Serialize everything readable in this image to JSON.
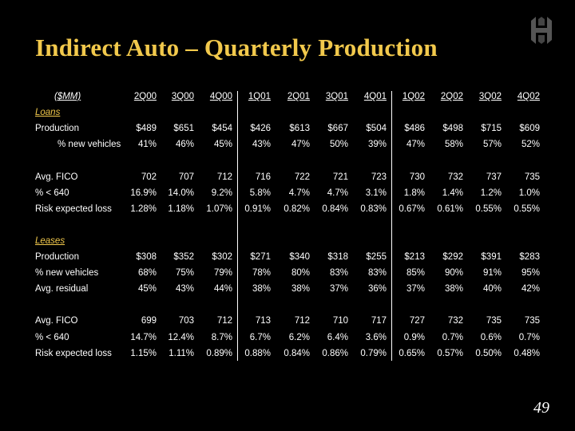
{
  "title": "Indirect Auto – Quarterly Production",
  "page_number": "49",
  "logo_icon": "building-monogram-icon",
  "accent_color": "#f2c94c",
  "table": {
    "header_label": "($MM)",
    "quarters": [
      "2Q00",
      "3Q00",
      "4Q00",
      "1Q01",
      "2Q01",
      "3Q01",
      "4Q01",
      "1Q02",
      "2Q02",
      "3Q02",
      "4Q02"
    ],
    "rows": [
      {
        "type": "section",
        "label": "Loans"
      },
      {
        "type": "data",
        "label": "Production",
        "values": [
          "$489",
          "$651",
          "$454",
          "$426",
          "$613",
          "$667",
          "$504",
          "$486",
          "$498",
          "$715",
          "$609"
        ]
      },
      {
        "type": "data",
        "indent": true,
        "label": "% new vehicles",
        "values": [
          "41%",
          "46%",
          "45%",
          "43%",
          "47%",
          "50%",
          "39%",
          "47%",
          "58%",
          "57%",
          "52%"
        ]
      },
      {
        "type": "blank"
      },
      {
        "type": "data",
        "label": "Avg. FICO",
        "values": [
          "702",
          "707",
          "712",
          "716",
          "722",
          "721",
          "723",
          "730",
          "732",
          "737",
          "735"
        ]
      },
      {
        "type": "data",
        "label": "% < 640",
        "values": [
          "16.9%",
          "14.0%",
          "9.2%",
          "5.8%",
          "4.7%",
          "4.7%",
          "3.1%",
          "1.8%",
          "1.4%",
          "1.2%",
          "1.0%"
        ]
      },
      {
        "type": "data",
        "label": "Risk expected loss",
        "values": [
          "1.28%",
          "1.18%",
          "1.07%",
          "0.91%",
          "0.82%",
          "0.84%",
          "0.83%",
          "0.67%",
          "0.61%",
          "0.55%",
          "0.55%"
        ]
      },
      {
        "type": "blank"
      },
      {
        "type": "section",
        "label": "Leases"
      },
      {
        "type": "data",
        "label": "Production",
        "values": [
          "$308",
          "$352",
          "$302",
          "$271",
          "$340",
          "$318",
          "$255",
          "$213",
          "$292",
          "$391",
          "$283"
        ]
      },
      {
        "type": "data",
        "label": "% new vehicles",
        "values": [
          "68%",
          "75%",
          "79%",
          "78%",
          "80%",
          "83%",
          "83%",
          "85%",
          "90%",
          "91%",
          "95%"
        ]
      },
      {
        "type": "data",
        "label": "Avg. residual",
        "values": [
          "45%",
          "43%",
          "44%",
          "38%",
          "38%",
          "37%",
          "36%",
          "37%",
          "38%",
          "40%",
          "42%"
        ]
      },
      {
        "type": "blank"
      },
      {
        "type": "data",
        "label": "Avg. FICO",
        "values": [
          "699",
          "703",
          "712",
          "713",
          "712",
          "710",
          "717",
          "727",
          "732",
          "735",
          "735"
        ]
      },
      {
        "type": "data",
        "label": "% < 640",
        "values": [
          "14.7%",
          "12.4%",
          "8.7%",
          "6.7%",
          "6.2%",
          "6.4%",
          "3.6%",
          "0.9%",
          "0.7%",
          "0.6%",
          "0.7%"
        ]
      },
      {
        "type": "data",
        "label": "Risk expected loss",
        "values": [
          "1.15%",
          "1.11%",
          "0.89%",
          "0.88%",
          "0.84%",
          "0.86%",
          "0.79%",
          "0.65%",
          "0.57%",
          "0.50%",
          "0.48%"
        ]
      }
    ]
  }
}
